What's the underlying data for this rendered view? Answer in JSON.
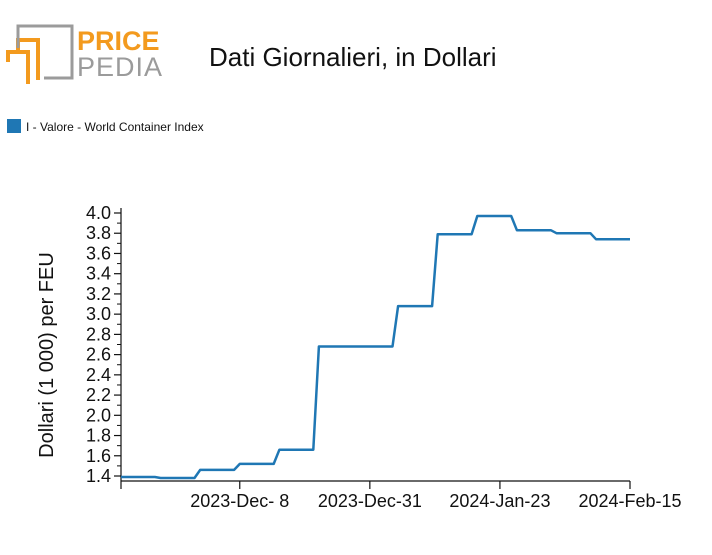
{
  "logo": {
    "part1": "PRICE",
    "part2": "PEDIA"
  },
  "colors": {
    "series": "#1f77b4",
    "logo_orange": "#f39a1e",
    "logo_gray": "#9b9b9b"
  },
  "chart_data": {
    "type": "line",
    "title": "Dati Giornalieri, in Dollari",
    "ylabel": "Dollari (1 000) per FEU",
    "xlabel": "",
    "ylim": [
      1.35,
      4.05
    ],
    "yticks": [
      1.4,
      1.6,
      1.8,
      2.0,
      2.2,
      2.4,
      2.6,
      2.8,
      3.0,
      3.2,
      3.4,
      3.6,
      3.8,
      4.0
    ],
    "ytick_labels": [
      "1.4",
      "1.6",
      "1.8",
      "2.0",
      "2.2",
      "2.4",
      "2.6",
      "2.8",
      "3.0",
      "3.2",
      "3.4",
      "3.6",
      "3.8",
      "4.0"
    ],
    "xlim": [
      "2023-11-17",
      "2024-02-15"
    ],
    "xticks": [
      "2023-11-17",
      "2023-12-08",
      "2023-12-31",
      "2024-01-23",
      "2024-02-15"
    ],
    "xtick_labels": [
      "",
      "2023-Dec- 8",
      "2023-Dec-31",
      "2024-Jan-23",
      "2024-Feb-15"
    ],
    "legend_position": "top-left",
    "grid": false,
    "series": [
      {
        "name": "I - Valore - World Container Index",
        "x": [
          "2023-11-17",
          "2023-11-23",
          "2023-11-24",
          "2023-11-30",
          "2023-12-01",
          "2023-12-07",
          "2023-12-08",
          "2023-12-14",
          "2023-12-15",
          "2023-12-21",
          "2023-12-22",
          "2023-12-28",
          "2023-12-29",
          "2024-01-04",
          "2024-01-05",
          "2024-01-11",
          "2024-01-12",
          "2024-01-18",
          "2024-01-19",
          "2024-01-25",
          "2024-01-26",
          "2024-02-01",
          "2024-02-02",
          "2024-02-08",
          "2024-02-09",
          "2024-02-15"
        ],
        "y": [
          1.39,
          1.39,
          1.38,
          1.38,
          1.46,
          1.46,
          1.52,
          1.52,
          1.66,
          1.66,
          2.68,
          2.68,
          2.68,
          2.68,
          3.08,
          3.08,
          3.79,
          3.79,
          3.97,
          3.97,
          3.83,
          3.83,
          3.8,
          3.8,
          3.74,
          3.74
        ]
      }
    ]
  }
}
